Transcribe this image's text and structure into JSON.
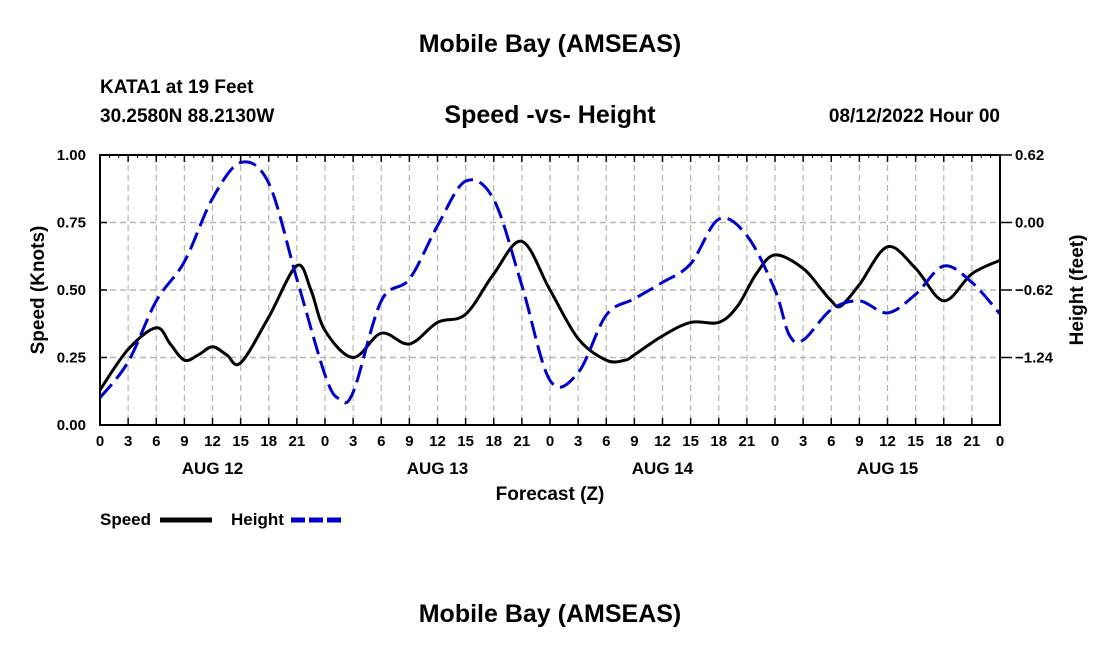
{
  "header": {
    "title": "Mobile Bay (AMSEAS)",
    "station": "KATA1 at 19 Feet",
    "coordinates": "30.2580N  88.2130W",
    "subtitle": "Speed -vs- Height",
    "datetime": "08/12/2022 Hour 00",
    "bottom_title": "Mobile Bay (AMSEAS)"
  },
  "chart_data": {
    "type": "line",
    "title": "Speed -vs- Height",
    "xlabel": "Forecast (Z)",
    "ylabel": "Speed (Knots)",
    "y2label": "Height (feet)",
    "xlim": [
      0,
      96
    ],
    "ylim": [
      0,
      1.0
    ],
    "y2lim": [
      -1.86,
      0.62
    ],
    "x_ticks": [
      0,
      3,
      6,
      9,
      12,
      15,
      18,
      21,
      24,
      27,
      30,
      33,
      36,
      39,
      42,
      45,
      48,
      51,
      54,
      57,
      60,
      63,
      66,
      69,
      72,
      75,
      78,
      81,
      84,
      87,
      90,
      93,
      96
    ],
    "x_tick_labels": [
      "0",
      "3",
      "6",
      "9",
      "12",
      "15",
      "18",
      "21",
      "0",
      "3",
      "6",
      "9",
      "12",
      "15",
      "18",
      "21",
      "0",
      "3",
      "6",
      "9",
      "12",
      "15",
      "18",
      "21",
      "0",
      "3",
      "6",
      "9",
      "12",
      "15",
      "18",
      "21",
      "0"
    ],
    "date_labels": [
      {
        "x": 12,
        "label": "AUG 12"
      },
      {
        "x": 36,
        "label": "AUG 13"
      },
      {
        "x": 60,
        "label": "AUG 14"
      },
      {
        "x": 84,
        "label": "AUG 15"
      }
    ],
    "y_ticks": [
      0.0,
      0.25,
      0.5,
      0.75,
      1.0
    ],
    "y_tick_labels": [
      "0.00",
      "0.25",
      "0.50",
      "0.75",
      "1.00"
    ],
    "y2_ticks": [
      0.62,
      0.0,
      -0.62,
      -1.24
    ],
    "y2_tick_labels": [
      "0.62",
      "0.00",
      "−0.62",
      "−1.24"
    ],
    "grid": true,
    "legend": "bottom-left",
    "series": [
      {
        "name": "Speed",
        "axis": "left",
        "color": "#000000",
        "dash": "solid",
        "x": [
          0,
          3,
          6,
          7.5,
          9,
          10.5,
          12,
          13.5,
          15,
          18,
          21,
          22.5,
          24,
          27,
          30,
          33,
          36,
          39,
          42,
          45,
          48,
          51,
          54,
          56,
          57,
          60,
          63,
          66,
          68,
          70,
          72,
          75,
          77,
          78,
          79,
          81,
          84,
          87,
          90,
          93,
          96
        ],
        "y": [
          0.13,
          0.28,
          0.36,
          0.3,
          0.24,
          0.26,
          0.29,
          0.26,
          0.23,
          0.4,
          0.59,
          0.5,
          0.35,
          0.25,
          0.34,
          0.3,
          0.38,
          0.41,
          0.56,
          0.68,
          0.5,
          0.32,
          0.24,
          0.24,
          0.26,
          0.33,
          0.38,
          0.38,
          0.44,
          0.56,
          0.63,
          0.58,
          0.5,
          0.46,
          0.44,
          0.52,
          0.66,
          0.58,
          0.46,
          0.56,
          0.61
        ]
      },
      {
        "name": "Height",
        "axis": "right",
        "color": "#0000cc",
        "dash": "dashed",
        "x": [
          0,
          3,
          6,
          9,
          12,
          15,
          18,
          21,
          24,
          25.5,
          27,
          30,
          33,
          36,
          39,
          42,
          45,
          48,
          51,
          54,
          57,
          60,
          63,
          66,
          69,
          72,
          73.5,
          75,
          78,
          81,
          84,
          87,
          90,
          93,
          96
        ],
        "y": [
          -1.61,
          -1.28,
          -0.72,
          -0.36,
          0.22,
          0.55,
          0.36,
          -0.52,
          -1.4,
          -1.62,
          -1.56,
          -0.72,
          -0.52,
          -0.03,
          0.38,
          0.21,
          -0.58,
          -1.45,
          -1.38,
          -0.85,
          -0.7,
          -0.55,
          -0.38,
          0.03,
          -0.12,
          -0.62,
          -1.03,
          -1.08,
          -0.8,
          -0.72,
          -0.83,
          -0.66,
          -0.4,
          -0.55,
          -0.84
        ]
      }
    ]
  },
  "legend": {
    "speed_label": "Speed",
    "height_label": "Height"
  }
}
